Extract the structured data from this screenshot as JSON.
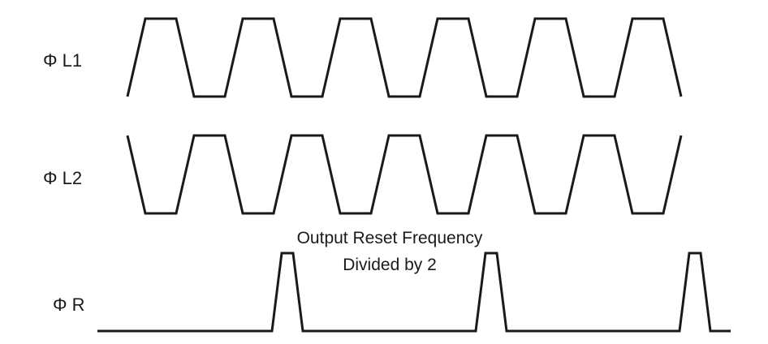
{
  "signals": [
    {
      "id": "phi-l1",
      "label": "Φ L1",
      "pattern": "clock",
      "start_level": "low",
      "cycles": 6
    },
    {
      "id": "phi-l2",
      "label": "Φ L2",
      "pattern": "clock",
      "start_level": "high",
      "cycles": 6
    },
    {
      "id": "phi-r",
      "label": "Φ R",
      "pattern": "pulse",
      "start_level": "low",
      "pulse_count": 3,
      "pulse_every_cycles": 2
    }
  ],
  "annotation": {
    "line1": "Output Reset Frequency",
    "line2": "Divided by 2"
  },
  "colors": {
    "stroke": "#1a1a1a",
    "background": "#ffffff"
  }
}
